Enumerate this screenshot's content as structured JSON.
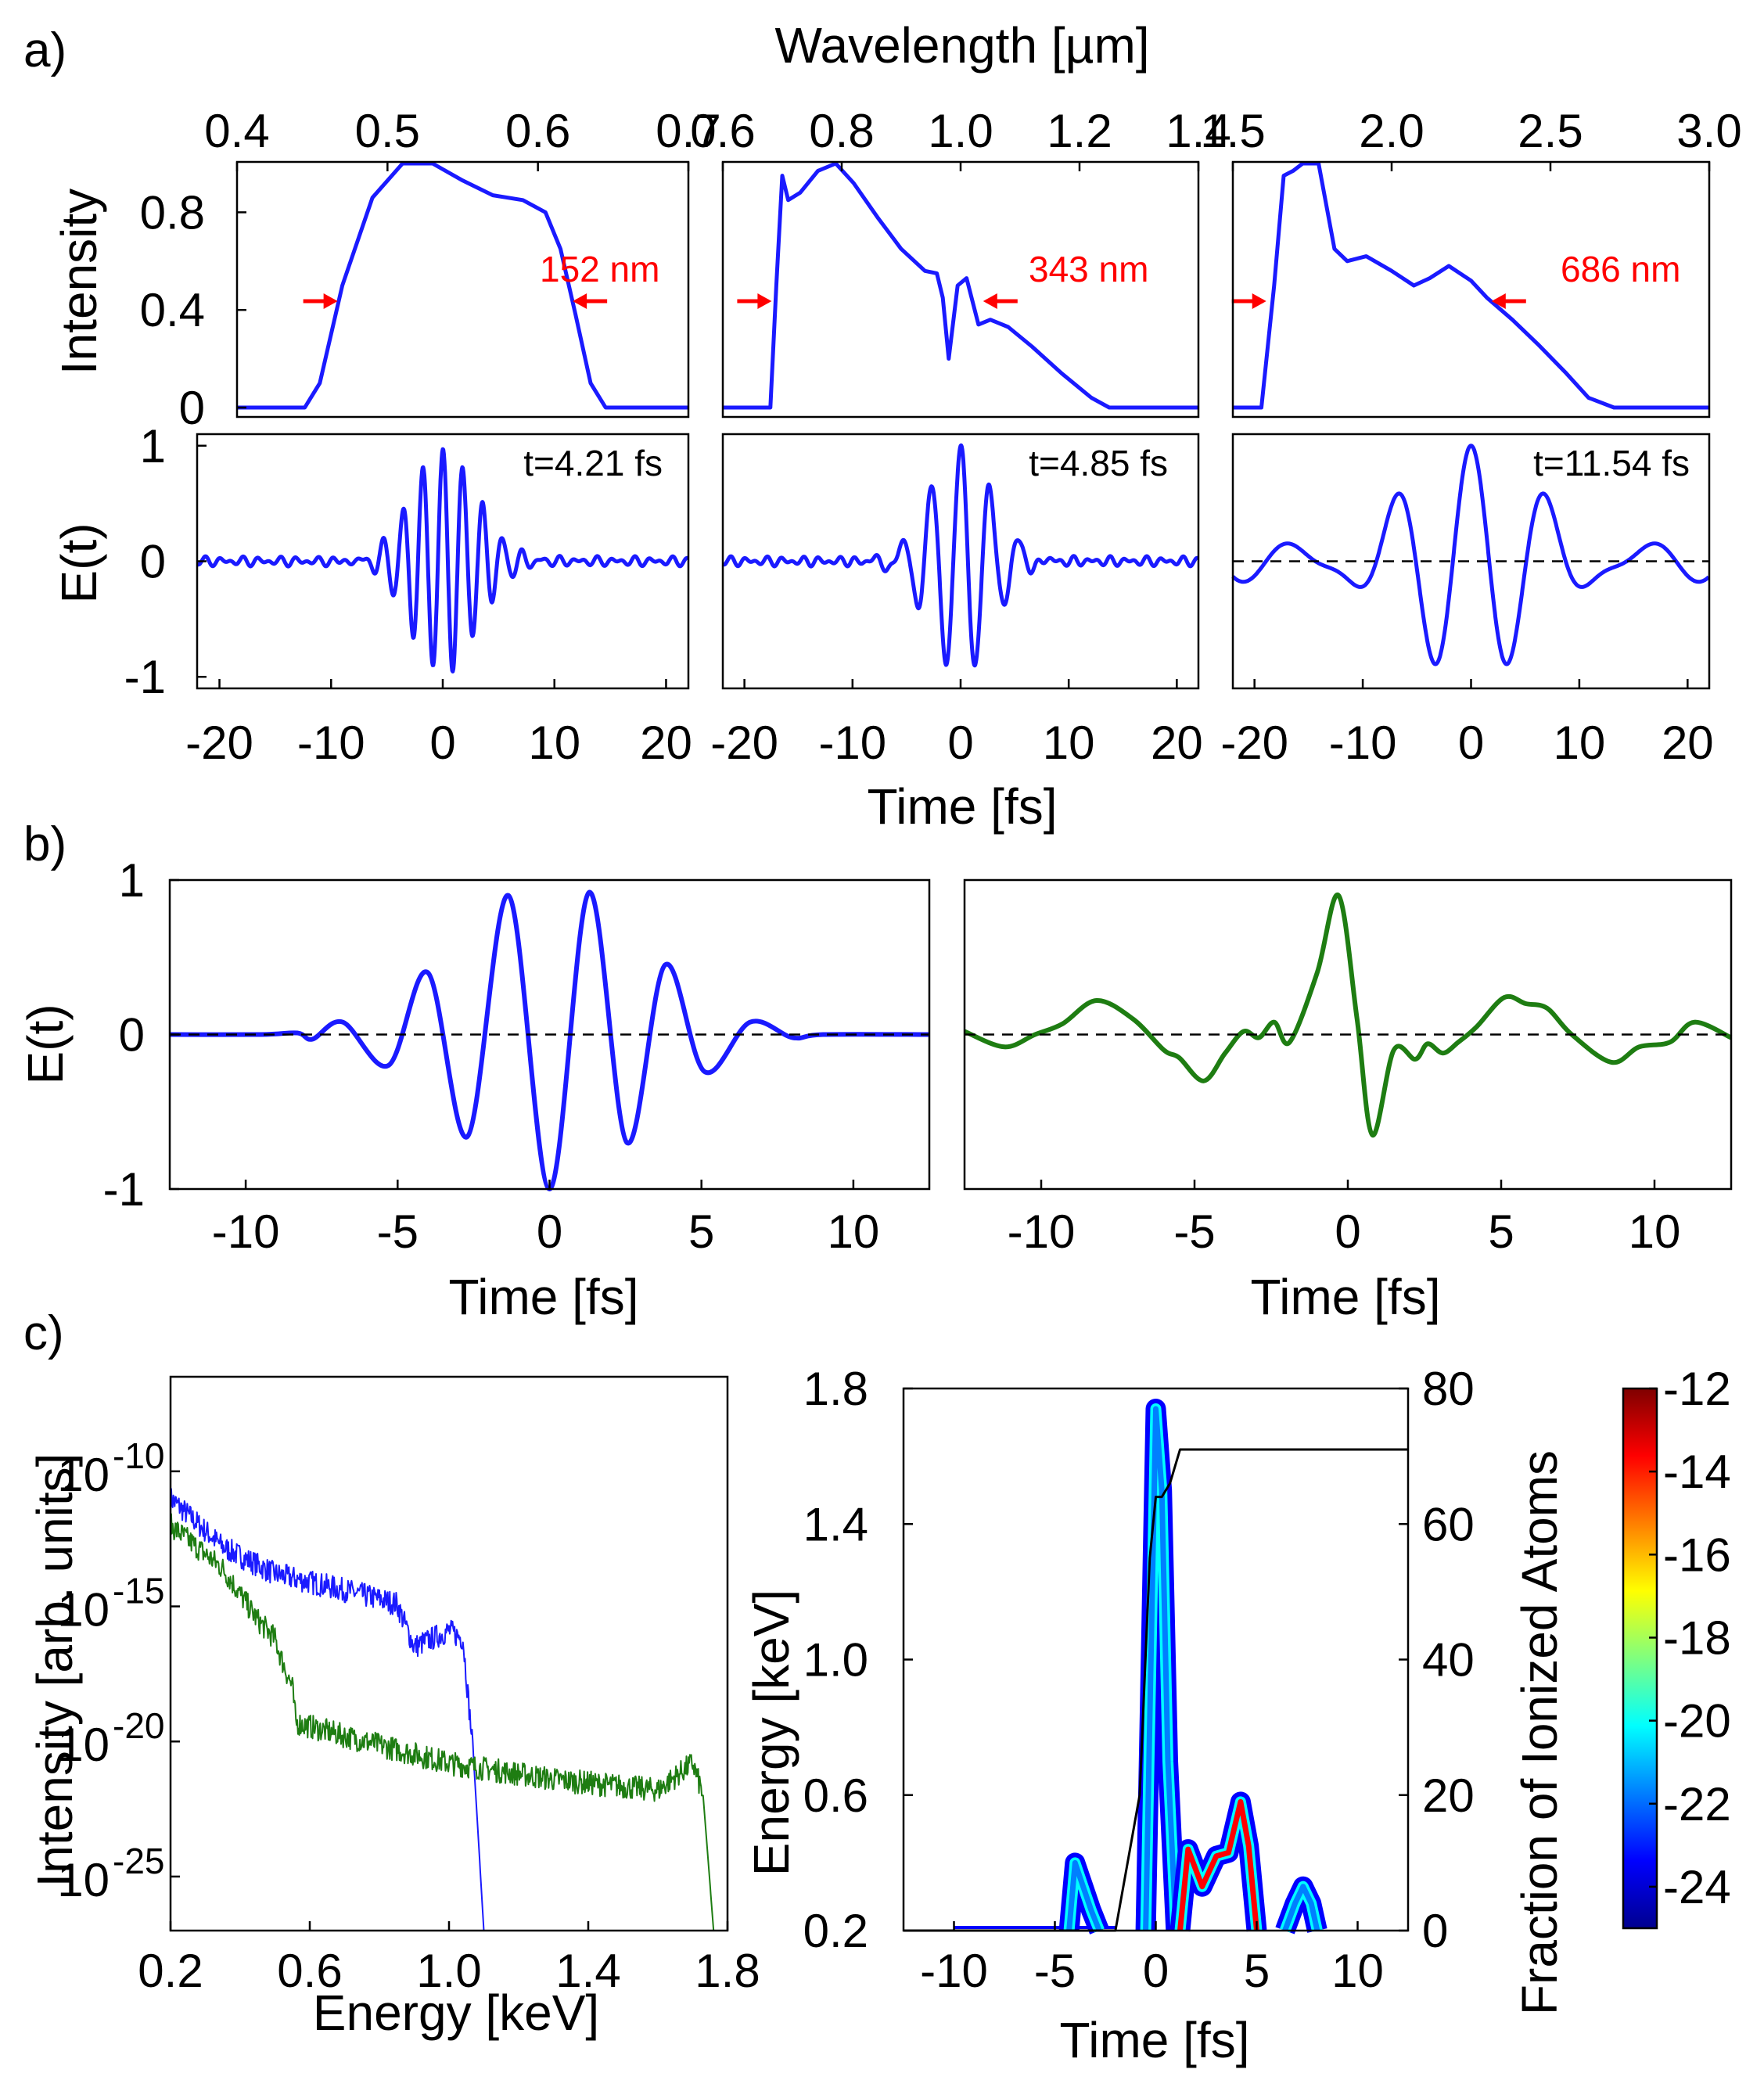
{
  "colors": {
    "blue": "#1a1aff",
    "green": "#1e7d12",
    "red": "#ff0000",
    "black": "#000000",
    "colormap": [
      "#00008f",
      "#0000ff",
      "#007fff",
      "#00ffff",
      "#7fff7f",
      "#ffff00",
      "#ff7f00",
      "#ff0000",
      "#7f0000"
    ]
  },
  "panel_labels": {
    "a": "a)",
    "b": "b)",
    "c": "c)"
  },
  "chart_data": [
    {
      "id": "a-spectrum-1",
      "type": "line",
      "xlabel": "Wavelength [µm]",
      "ylabel": "Intensity",
      "xlim": [
        0.4,
        0.7
      ],
      "ylim": [
        0,
        1.0
      ],
      "xticks": [
        0.4,
        0.5,
        0.6,
        0.7
      ],
      "xtick_labels": [
        "0.4",
        "0.5",
        "0.6",
        "0.7"
      ],
      "yticks": [
        0,
        0.4,
        0.8
      ],
      "ytick_labels": [
        "0",
        "0.4",
        "0.8"
      ],
      "annotation": "152 nm",
      "fwhm_um": [
        0.47,
        0.62
      ],
      "series": [
        {
          "name": "spectrum",
          "color": "blue",
          "x": [
            0.4,
            0.445,
            0.455,
            0.47,
            0.49,
            0.51,
            0.53,
            0.55,
            0.57,
            0.59,
            0.605,
            0.615,
            0.625,
            0.635,
            0.645,
            0.7
          ],
          "y": [
            0,
            0,
            0.1,
            0.5,
            0.86,
            1.0,
            1.0,
            0.93,
            0.87,
            0.85,
            0.8,
            0.65,
            0.38,
            0.1,
            0,
            0
          ]
        }
      ]
    },
    {
      "id": "a-spectrum-2",
      "type": "line",
      "xlim": [
        0.6,
        1.4
      ],
      "ylim": [
        0,
        1.0
      ],
      "xticks": [
        0.6,
        0.8,
        1.0,
        1.2,
        1.4
      ],
      "xtick_labels": [
        "0.6",
        "0.8",
        "1.0",
        "1.2",
        "1.4"
      ],
      "annotation": "343 nm",
      "fwhm_um": [
        0.69,
        1.03
      ],
      "series": [
        {
          "name": "spectrum",
          "color": "blue",
          "x": [
            0.6,
            0.68,
            0.69,
            0.7,
            0.71,
            0.73,
            0.76,
            0.79,
            0.82,
            0.86,
            0.9,
            0.94,
            0.96,
            0.97,
            0.98,
            0.995,
            1.01,
            1.03,
            1.05,
            1.08,
            1.12,
            1.17,
            1.22,
            1.25,
            1.4
          ],
          "y": [
            0,
            0,
            0.5,
            0.95,
            0.85,
            0.88,
            0.97,
            1.0,
            0.92,
            0.78,
            0.65,
            0.56,
            0.55,
            0.45,
            0.2,
            0.5,
            0.53,
            0.34,
            0.36,
            0.33,
            0.25,
            0.14,
            0.04,
            0,
            0
          ]
        }
      ]
    },
    {
      "id": "a-spectrum-3",
      "type": "line",
      "xlim": [
        1.5,
        3.0
      ],
      "ylim": [
        0,
        1.0
      ],
      "xticks": [
        1.5,
        2.0,
        2.5,
        3.0
      ],
      "xtick_labels": [
        "1.5",
        "2.0",
        "2.5",
        "3.0"
      ],
      "annotation": "686 nm",
      "fwhm_um": [
        1.62,
        2.3
      ],
      "series": [
        {
          "name": "spectrum",
          "color": "blue",
          "x": [
            1.5,
            1.59,
            1.63,
            1.66,
            1.69,
            1.72,
            1.77,
            1.82,
            1.86,
            1.92,
            2.0,
            2.07,
            2.12,
            2.18,
            2.25,
            2.3,
            2.38,
            2.46,
            2.55,
            2.62,
            2.7,
            3.0
          ],
          "y": [
            0,
            0,
            0.5,
            0.95,
            0.97,
            1.0,
            1.0,
            0.65,
            0.6,
            0.62,
            0.56,
            0.5,
            0.53,
            0.58,
            0.52,
            0.45,
            0.36,
            0.26,
            0.14,
            0.04,
            0,
            0
          ]
        }
      ]
    },
    {
      "id": "a-field-1",
      "type": "line",
      "xlabel": "Time [fs]",
      "ylabel": "E(t)",
      "xlim": [
        -22,
        22
      ],
      "ylim": [
        -1.1,
        1.1
      ],
      "xticks": [
        -20,
        -10,
        0,
        10,
        20
      ],
      "xtick_labels": [
        "-20",
        "-10",
        "0",
        "10",
        "20"
      ],
      "yticks": [
        -1,
        0,
        1
      ],
      "ytick_labels": [
        "-1",
        "0",
        "1"
      ],
      "annotation": "t=4.21 fs",
      "model": {
        "period_fs": 1.78,
        "sigma_fs": 3.0,
        "amplitude": 0.97,
        "noise_amp": 0.045
      },
      "series": [
        {
          "name": "E(t)",
          "color": "blue"
        }
      ]
    },
    {
      "id": "a-field-2",
      "type": "line",
      "xlim": [
        -22,
        22
      ],
      "ylim": [
        -1.1,
        1.1
      ],
      "xticks": [
        -20,
        -10,
        0,
        10,
        20
      ],
      "xtick_labels": [
        "-20",
        "-10",
        "0",
        "10",
        "20"
      ],
      "annotation": "t=4.85 fs",
      "model": {
        "period_fs": 2.7,
        "sigma_fs": 2.9,
        "amplitude": 1.0,
        "noise_amp": 0.045
      },
      "series": [
        {
          "name": "E(t)",
          "color": "blue"
        }
      ]
    },
    {
      "id": "a-field-3",
      "type": "line",
      "xlim": [
        -22,
        22
      ],
      "ylim": [
        -1.1,
        1.1
      ],
      "xticks": [
        -20,
        -10,
        0,
        10,
        20
      ],
      "xtick_labels": [
        "-20",
        "-10",
        "0",
        "10",
        "20"
      ],
      "annotation": "t=11.54 fs",
      "model": {
        "period_fs": 6.7,
        "sigma_fs": 6.2,
        "amplitude": 1.0,
        "tail_amp": 0.18
      },
      "series": [
        {
          "name": "E(t)",
          "color": "blue"
        }
      ]
    },
    {
      "id": "b-field-1",
      "type": "line",
      "xlabel": "Time [fs]",
      "ylabel": "E(t)",
      "xlim": [
        -12.5,
        12.5
      ],
      "ylim": [
        -1.0,
        1.0
      ],
      "xticks": [
        -10,
        -5,
        0,
        5,
        10
      ],
      "xtick_labels": [
        "-10",
        "-5",
        "0",
        "5",
        "10"
      ],
      "yticks": [
        -1,
        0,
        1
      ],
      "ytick_labels": [
        "-1",
        "0",
        "1"
      ],
      "series": [
        {
          "name": "E(t)",
          "color": "blue",
          "x": [
            -12.5,
            -9.5,
            -8.3,
            -7.8,
            -6.8,
            -5.3,
            -4.0,
            -2.7,
            -1.35,
            0.0,
            1.3,
            2.55,
            3.8,
            5.1,
            6.6,
            8.0,
            9.0,
            12.5
          ],
          "y": [
            0,
            0,
            0.01,
            -0.03,
            0.08,
            -0.2,
            0.4,
            -0.66,
            0.9,
            -1.0,
            0.92,
            -0.7,
            0.45,
            -0.24,
            0.08,
            -0.02,
            0,
            0
          ]
        }
      ]
    },
    {
      "id": "b-field-2",
      "type": "line",
      "xlabel": "Time [fs]",
      "xlim": [
        -12.5,
        12.5
      ],
      "ylim": [
        -1.0,
        1.0
      ],
      "xticks": [
        -10,
        -5,
        0,
        5,
        10
      ],
      "xtick_labels": [
        "-10",
        "-5",
        "0",
        "5",
        "10"
      ],
      "series": [
        {
          "name": "E(t)",
          "color": "green",
          "x": [
            -12.5,
            -11.2,
            -10.2,
            -9.3,
            -8.2,
            -7.0,
            -6.0,
            -5.5,
            -4.7,
            -4.0,
            -3.4,
            -2.9,
            -2.4,
            -1.9,
            -1.0,
            -0.3,
            0.3,
            0.8,
            1.5,
            2.2,
            2.6,
            3.1,
            3.6,
            4.2,
            5.1,
            5.8,
            6.5,
            7.3,
            8.6,
            9.5,
            10.5,
            11.3,
            12.5
          ],
          "y": [
            0.02,
            -0.08,
            0.0,
            0.07,
            0.22,
            0.1,
            -0.1,
            -0.15,
            -0.3,
            -0.12,
            0.02,
            -0.02,
            0.08,
            -0.05,
            0.4,
            0.9,
            0.1,
            -0.65,
            -0.1,
            -0.16,
            -0.06,
            -0.12,
            -0.05,
            0.05,
            0.24,
            0.2,
            0.17,
            0.0,
            -0.18,
            -0.08,
            -0.05,
            0.08,
            -0.02
          ]
        }
      ]
    },
    {
      "id": "c-spectra",
      "type": "line",
      "xlabel": "Energy [keV]",
      "ylabel": "Intensity [arb. units]",
      "xlim": [
        0.2,
        1.8
      ],
      "ylim_log10": [
        -27,
        -6.5
      ],
      "xticks": [
        0.2,
        0.6,
        1.0,
        1.4,
        1.8
      ],
      "xtick_labels": [
        "0.2",
        "0.6",
        "1.0",
        "1.4",
        "1.8"
      ],
      "yticks_log10": [
        -10,
        -15,
        -20,
        -25
      ],
      "ytick_bases": [
        "10",
        "10",
        "10",
        "10"
      ],
      "ytick_exps": [
        "-10",
        "-15",
        "-20",
        "-25"
      ],
      "series": [
        {
          "name": "blue",
          "color": "blue",
          "x_keV": [
            0.2,
            0.35,
            0.5,
            0.7,
            0.85,
            0.9,
            1.0,
            1.04,
            1.07,
            1.1
          ],
          "log10_y": [
            -11.0,
            -12.8,
            -13.8,
            -14.4,
            -14.9,
            -16.5,
            -15.9,
            -16.2,
            -20.5,
            -27.0
          ]
        },
        {
          "name": "green",
          "color": "green",
          "x_keV": [
            0.2,
            0.35,
            0.45,
            0.5,
            0.52,
            0.55,
            0.56,
            0.7,
            1.0,
            1.3,
            1.6,
            1.7,
            1.73,
            1.76
          ],
          "log10_y": [
            -12.0,
            -13.6,
            -15.5,
            -16.2,
            -17.0,
            -18.0,
            -19.3,
            -19.8,
            -20.8,
            -21.4,
            -21.8,
            -20.8,
            -22.0,
            -27.0
          ]
        }
      ]
    },
    {
      "id": "c-spectrogram",
      "type": "heatmap",
      "xlabel": "Time [fs]",
      "ylabel": "Energy [keV]",
      "y2label": "Fraction of Ionized Atoms",
      "xlim": [
        -12.5,
        12.5
      ],
      "ylim": [
        0.2,
        1.8
      ],
      "y2lim": [
        0,
        80
      ],
      "xticks": [
        -10,
        -5,
        0,
        5,
        10
      ],
      "xtick_labels": [
        "-10",
        "-5",
        "0",
        "5",
        "10"
      ],
      "yticks": [
        0.2,
        0.6,
        1.0,
        1.4,
        1.8
      ],
      "ytick_labels": [
        "0.2",
        "0.6",
        "1.0",
        "1.4",
        "1.8"
      ],
      "y2ticks": [
        0,
        20,
        40,
        60,
        80
      ],
      "y2tick_labels": [
        "0",
        "20",
        "40",
        "60",
        "80"
      ],
      "bursts": [
        {
          "t_fs": [
            -4.3,
            -4.0,
            -3.6,
            -3.2,
            -2.8
          ],
          "e_keV": [
            0.2,
            0.4,
            0.33,
            0.26,
            0.2
          ],
          "level": -22
        },
        {
          "t_fs": [
            -0.5,
            0.0,
            0.3,
            0.6,
            1.0
          ],
          "e_keV": [
            0.2,
            1.74,
            1.5,
            0.7,
            0.2
          ],
          "level": -22
        },
        {
          "t_fs": [
            1.2,
            1.6,
            2.3,
            3.0,
            3.6,
            4.2,
            4.6,
            5.0
          ],
          "e_keV": [
            0.2,
            0.44,
            0.33,
            0.42,
            0.43,
            0.58,
            0.45,
            0.2
          ],
          "level": -13
        },
        {
          "t_fs": [
            6.4,
            6.9,
            7.3,
            7.7,
            8.0
          ],
          "e_keV": [
            0.2,
            0.28,
            0.33,
            0.28,
            0.2
          ],
          "level": -22
        }
      ],
      "ionization_fraction": {
        "t_fs": [
          -12.5,
          -2.0,
          -0.8,
          -0.3,
          0.0,
          0.3,
          0.7,
          1.2,
          1.6,
          12.5
        ],
        "percent": [
          0,
          0,
          20,
          55,
          64,
          64,
          66,
          71,
          71,
          71
        ]
      },
      "colorbar": {
        "min": -25,
        "max": -12,
        "ticks": [
          -12,
          -14,
          -16,
          -18,
          -20,
          -22,
          -24
        ],
        "tick_labels": [
          "-12",
          "-14",
          "-16",
          "-18",
          "-20",
          "-22",
          "-24"
        ]
      }
    }
  ]
}
